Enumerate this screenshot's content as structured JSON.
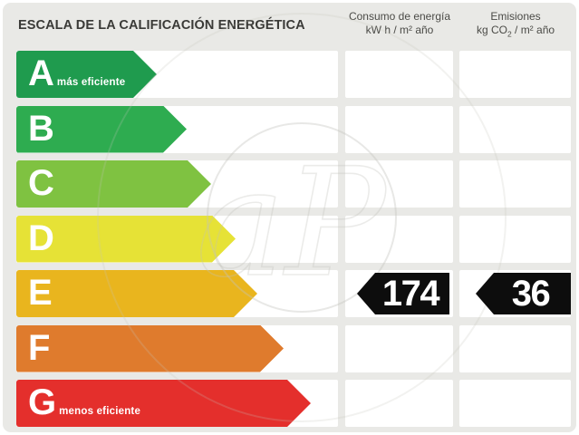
{
  "header": {
    "title": "ESCALA DE LA CALIFICACIÓN ENERGÉTICA",
    "consumption_title": "Consumo de energía",
    "consumption_units": "kW h / m² año",
    "emissions_title": "Emisiones",
    "emissions_units_pre": "kg CO",
    "emissions_units_sub": "2",
    "emissions_units_post": " / m² año"
  },
  "scale": {
    "rows": [
      {
        "grade": "A",
        "sublabel": "más eficiente",
        "color": "#1f9b4e",
        "arrow_width": 155
      },
      {
        "grade": "B",
        "sublabel": "",
        "color": "#2eac50",
        "arrow_width": 188
      },
      {
        "grade": "C",
        "sublabel": "",
        "color": "#7fc241",
        "arrow_width": 215
      },
      {
        "grade": "D",
        "sublabel": "",
        "color": "#e6e236",
        "arrow_width": 242
      },
      {
        "grade": "E",
        "sublabel": "",
        "color": "#e9b51e",
        "arrow_width": 266
      },
      {
        "grade": "F",
        "sublabel": "",
        "color": "#df7b2d",
        "arrow_width": 295
      },
      {
        "grade": "G",
        "sublabel": "menos eficiente",
        "color": "#e42f2c",
        "arrow_width": 325
      }
    ]
  },
  "rating": {
    "grade": "E",
    "consumption_value": "174",
    "emissions_value": "36"
  },
  "watermark": {
    "text": "aP"
  },
  "colors": {
    "panel_bg": "#e9e9e6",
    "badge_bg": "#0d0d0d",
    "title_text": "#3a3a37",
    "header_text": "#4b4b47",
    "watermark_stroke": "#c2c2bc"
  }
}
